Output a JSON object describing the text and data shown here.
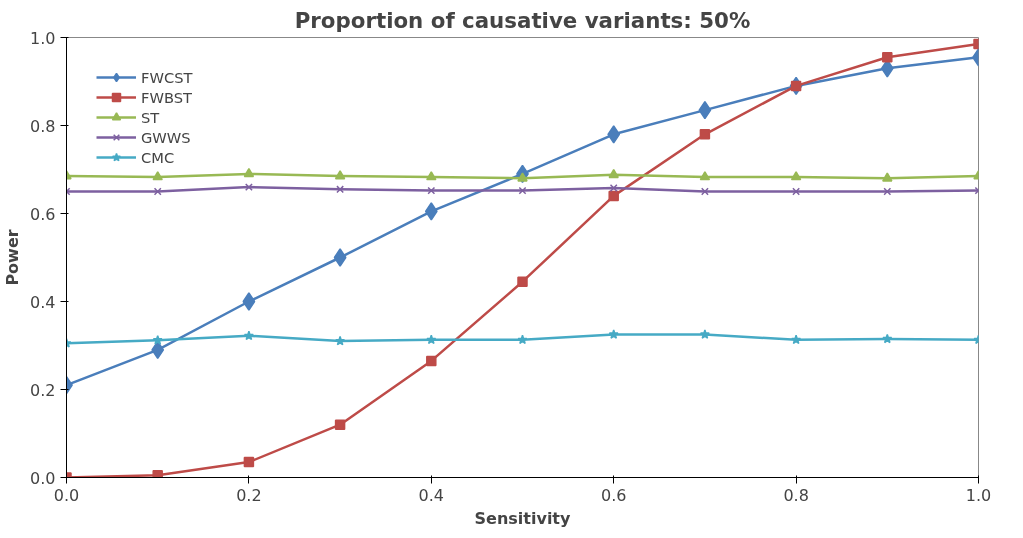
{
  "chart_data": {
    "type": "line",
    "title": "Proportion of causative variants: 50%",
    "xlabel": "Sensitivity",
    "ylabel": "Power",
    "x": [
      0.0,
      0.1,
      0.2,
      0.3,
      0.4,
      0.5,
      0.6,
      0.7,
      0.8,
      0.9,
      1.0
    ],
    "xlim": [
      0.0,
      1.0
    ],
    "xticks": [
      {
        "value": 0.0,
        "label": "0.0"
      },
      0.2,
      0.4,
      0.6,
      0.8,
      {
        "value": 1.0,
        "label": "1.0"
      }
    ],
    "ylim": [
      0.0,
      1.0
    ],
    "yticks": [
      {
        "value": 0.0,
        "label": "0.0"
      },
      0.2,
      0.4,
      0.6,
      0.8,
      {
        "value": 1.0,
        "label": "1.0"
      }
    ],
    "grid": false,
    "legend": "top left",
    "line_style": "solid",
    "series": [
      {
        "name": "FWCST",
        "color": "#4a7ebb",
        "marker": "diamond",
        "values": [
          0.21,
          0.29,
          0.4,
          0.5,
          0.605,
          0.69,
          0.78,
          0.835,
          0.89,
          0.93,
          0.955
        ]
      },
      {
        "name": "FWBST",
        "color": "#be4b48",
        "marker": "square",
        "values": [
          0.0,
          0.005,
          0.035,
          0.12,
          0.265,
          0.445,
          0.64,
          0.78,
          0.89,
          0.955,
          0.985
        ]
      },
      {
        "name": "ST",
        "color": "#98b954",
        "marker": "triangle",
        "values": [
          0.685,
          0.683,
          0.69,
          0.685,
          0.683,
          0.68,
          0.688,
          0.683,
          0.683,
          0.68,
          0.685
        ]
      },
      {
        "name": "GWWS",
        "color": "#7d60a0",
        "marker": "cross",
        "values": [
          0.65,
          0.65,
          0.66,
          0.655,
          0.652,
          0.652,
          0.658,
          0.65,
          0.65,
          0.65,
          0.652
        ]
      },
      {
        "name": "CMC",
        "color": "#46aac5",
        "marker": "star",
        "values": [
          0.305,
          0.312,
          0.322,
          0.31,
          0.313,
          0.313,
          0.325,
          0.325,
          0.313,
          0.315,
          0.313
        ]
      }
    ]
  }
}
